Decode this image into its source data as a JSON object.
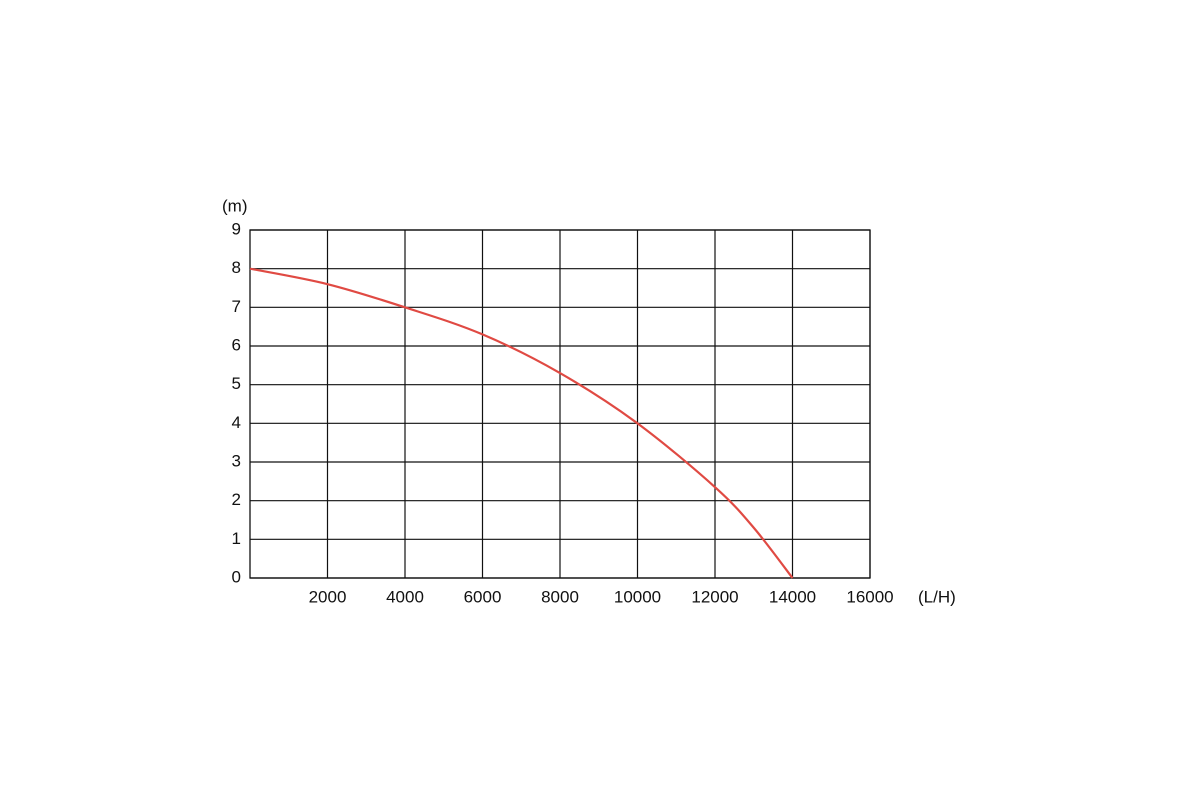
{
  "chart_data": {
    "type": "line",
    "y_label": "(m)",
    "x_label": "(L/H)",
    "x": [
      0,
      2000,
      4000,
      6000,
      8000,
      10000,
      12000,
      13000,
      14000
    ],
    "series": [
      {
        "color": "#e04a43",
        "values": [
          8,
          7.6,
          7.0,
          6.3,
          5.3,
          4.0,
          2.35,
          1.3,
          0
        ]
      }
    ],
    "xlim": [
      0,
      16000
    ],
    "xticks": [
      2000,
      4000,
      6000,
      8000,
      10000,
      12000,
      14000,
      16000
    ],
    "ylim": [
      0,
      9
    ],
    "yticks": [
      0,
      1,
      2,
      3,
      4,
      5,
      6,
      7,
      8,
      9
    ],
    "grid": true
  }
}
